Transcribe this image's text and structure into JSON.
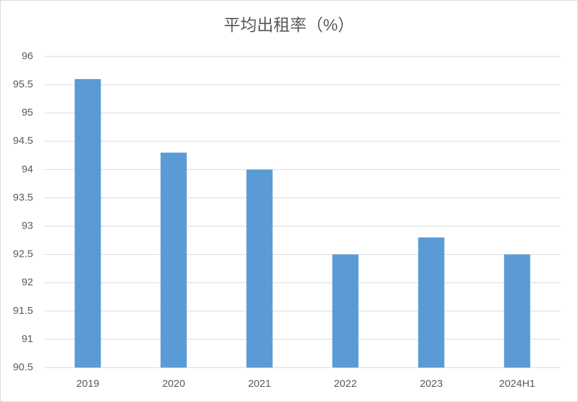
{
  "chart_data": {
    "type": "bar",
    "title": "平均出租率（%）",
    "categories": [
      "2019",
      "2020",
      "2021",
      "2022",
      "2023",
      "2024H1"
    ],
    "values": [
      95.6,
      94.3,
      94.0,
      92.5,
      92.8,
      92.5
    ],
    "color": "#5b9bd5",
    "ylim": [
      90.5,
      96
    ],
    "yticks": [
      90.5,
      91,
      91.5,
      92,
      92.5,
      93,
      93.5,
      94,
      94.5,
      95,
      95.5,
      96
    ],
    "grid": true
  }
}
